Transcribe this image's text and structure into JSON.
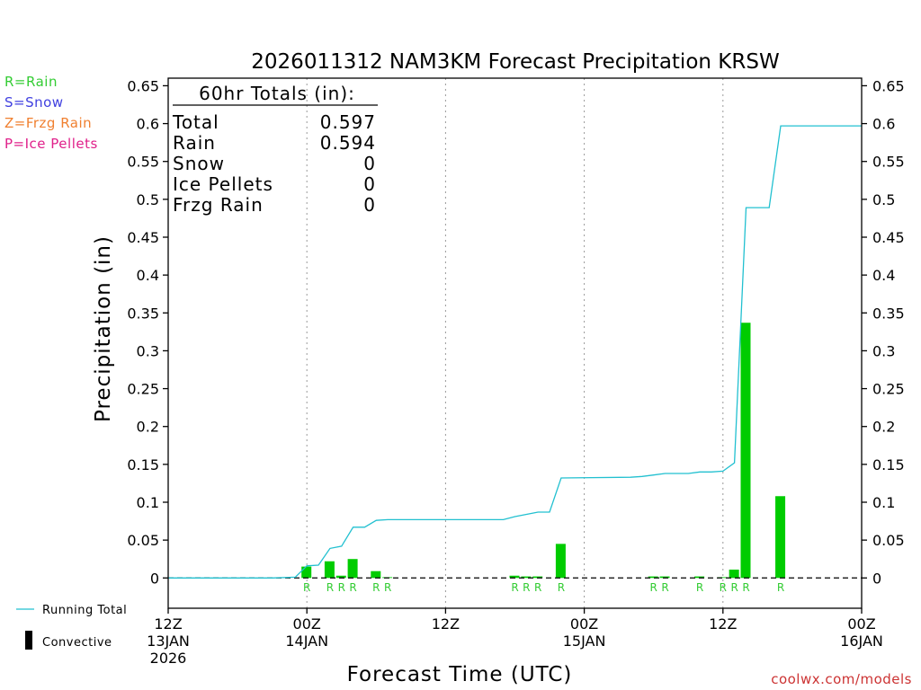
{
  "chart_data": {
    "type": "bar",
    "title": "2026011312 NAM3KM Forecast Precipitation KRSW",
    "xlabel": "Forecast Time (UTC)",
    "ylabel": "Precipitation (in)",
    "ylim": [
      -0.04,
      0.66
    ],
    "yticks": [
      0,
      0.05,
      0.1,
      0.15,
      0.2,
      0.25,
      0.3,
      0.35,
      0.4,
      0.45,
      0.5,
      0.55,
      0.6,
      0.65
    ],
    "ytick_labels": [
      "0",
      "0.05",
      "0.1",
      "0.15",
      "0.2",
      "0.25",
      "0.3",
      "0.35",
      "0.4",
      "0.45",
      "0.5",
      "0.55",
      "0.6",
      "0.65"
    ],
    "xlim": [
      0,
      60
    ],
    "xticks": [
      {
        "hour": 0,
        "lines": [
          "12Z",
          "13JAN",
          "2026"
        ]
      },
      {
        "hour": 12,
        "lines": [
          "00Z",
          "14JAN"
        ]
      },
      {
        "hour": 24,
        "lines": [
          "12Z"
        ]
      },
      {
        "hour": 36,
        "lines": [
          "00Z",
          "15JAN"
        ]
      },
      {
        "hour": 48,
        "lines": [
          "12Z"
        ]
      },
      {
        "hour": 60,
        "lines": [
          "00Z",
          "16JAN"
        ]
      }
    ],
    "grid": "vertical dotted at 12-hour intervals",
    "bars": [
      {
        "hour": 12,
        "value": 0.015,
        "type": "R"
      },
      {
        "hour": 14,
        "value": 0.022,
        "type": "R"
      },
      {
        "hour": 15,
        "value": 0.003,
        "type": "R"
      },
      {
        "hour": 16,
        "value": 0.025,
        "type": "R"
      },
      {
        "hour": 18,
        "value": 0.009,
        "type": "R"
      },
      {
        "hour": 19,
        "value": 0.001,
        "type": "R"
      },
      {
        "hour": 30,
        "value": 0.003,
        "type": "R"
      },
      {
        "hour": 31,
        "value": 0.002,
        "type": "R"
      },
      {
        "hour": 32,
        "value": 0.002,
        "type": "R"
      },
      {
        "hour": 34,
        "value": 0.045,
        "type": "R"
      },
      {
        "hour": 42,
        "value": 0.002,
        "type": "R"
      },
      {
        "hour": 43,
        "value": 0.002,
        "type": "R"
      },
      {
        "hour": 46,
        "value": 0.002,
        "type": "R"
      },
      {
        "hour": 48,
        "value": 0.001,
        "type": "R"
      },
      {
        "hour": 49,
        "value": 0.011,
        "type": "R"
      },
      {
        "hour": 50,
        "value": 0.337,
        "type": "R"
      },
      {
        "hour": 53,
        "value": 0.108,
        "type": "R"
      }
    ],
    "running_total": {
      "name": "Running Total",
      "color": "#22c0d0",
      "points": [
        [
          0,
          0
        ],
        [
          9,
          0
        ],
        [
          11,
          0.001
        ],
        [
          12,
          0.016
        ],
        [
          13,
          0.017
        ],
        [
          14,
          0.039
        ],
        [
          15,
          0.042
        ],
        [
          16,
          0.067
        ],
        [
          17,
          0.067
        ],
        [
          18,
          0.076
        ],
        [
          19,
          0.077
        ],
        [
          29,
          0.077
        ],
        [
          30,
          0.081
        ],
        [
          31,
          0.084
        ],
        [
          32,
          0.087
        ],
        [
          33,
          0.087
        ],
        [
          34,
          0.132
        ],
        [
          40,
          0.133
        ],
        [
          41,
          0.134
        ],
        [
          42,
          0.136
        ],
        [
          43,
          0.138
        ],
        [
          45,
          0.138
        ],
        [
          46,
          0.14
        ],
        [
          47,
          0.14
        ],
        [
          48,
          0.141
        ],
        [
          49,
          0.152
        ],
        [
          50,
          0.489
        ],
        [
          52,
          0.489
        ],
        [
          53,
          0.597
        ],
        [
          60,
          0.597
        ]
      ]
    },
    "bar_color": "#00cc00",
    "convective_color": "#000000",
    "totals_box": {
      "heading": "60hr Totals (in):",
      "rows": [
        {
          "label": "Total",
          "value": "0.597"
        },
        {
          "label": "Rain",
          "value": "0.594"
        },
        {
          "label": "Snow",
          "value": "0"
        },
        {
          "label": "Ice Pellets",
          "value": "0"
        },
        {
          "label": "Frzg Rain",
          "value": "0"
        }
      ]
    },
    "type_legend": [
      {
        "text": "R=Rain",
        "color": "#33cc33"
      },
      {
        "text": "S=Snow",
        "color": "#4040e0"
      },
      {
        "text": "Z=Frzg Rain",
        "color": "#f08030"
      },
      {
        "text": "P=Ice Pellets",
        "color": "#e0208a"
      }
    ],
    "legend": [
      {
        "label": "Running Total",
        "symbol": "line",
        "color": "#22c0d0"
      },
      {
        "label": "Convective",
        "symbol": "bar",
        "color": "#000000"
      }
    ],
    "type_label_color": "#33cc33",
    "credit": "coolwx.com/models",
    "credit_color": "#cc3333"
  }
}
